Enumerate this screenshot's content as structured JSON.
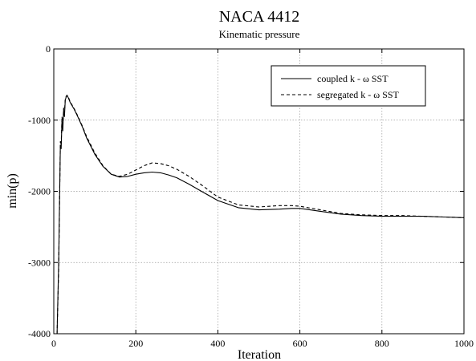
{
  "chart_data": {
    "type": "line",
    "title": "NACA 4412",
    "subtitle": "Kinematic pressure",
    "xlabel": "Iteration",
    "ylabel": "min(p)",
    "xlim": [
      0,
      1000
    ],
    "ylim": [
      -4000,
      0
    ],
    "xticks": [
      0,
      200,
      400,
      600,
      800,
      1000
    ],
    "yticks": [
      -4000,
      -3000,
      -2000,
      -1000,
      0
    ],
    "xtick_labels": [
      "0",
      "200",
      "400",
      "600",
      "800",
      "1000"
    ],
    "ytick_labels": [
      "-4000",
      "-3000",
      "-2000",
      "-1000",
      "0"
    ],
    "grid": true,
    "legend_position": "top-right",
    "series": [
      {
        "name": "coupled k - ω SST",
        "style": "solid",
        "color": "#000000",
        "x": [
          8,
          12,
          16,
          18,
          20,
          22,
          24,
          26,
          28,
          30,
          32,
          35,
          40,
          50,
          60,
          70,
          80,
          100,
          120,
          140,
          160,
          180,
          200,
          220,
          240,
          260,
          280,
          300,
          330,
          360,
          400,
          450,
          500,
          550,
          580,
          600,
          650,
          700,
          750,
          800,
          850,
          900,
          950,
          1000
        ],
        "y": [
          -4000,
          -3000,
          -1350,
          -1400,
          -1000,
          -1150,
          -850,
          -950,
          -720,
          -680,
          -650,
          -680,
          -750,
          -850,
          -970,
          -1100,
          -1250,
          -1480,
          -1650,
          -1760,
          -1800,
          -1790,
          -1760,
          -1740,
          -1730,
          -1740,
          -1770,
          -1810,
          -1900,
          -2000,
          -2130,
          -2230,
          -2260,
          -2250,
          -2240,
          -2240,
          -2280,
          -2320,
          -2340,
          -2350,
          -2350,
          -2350,
          -2360,
          -2370
        ]
      },
      {
        "name": "segregated k - ω SST",
        "style": "dashed",
        "color": "#000000",
        "x": [
          8,
          12,
          16,
          18,
          20,
          22,
          24,
          26,
          28,
          30,
          32,
          35,
          40,
          50,
          60,
          70,
          80,
          100,
          120,
          140,
          160,
          180,
          200,
          220,
          240,
          260,
          280,
          300,
          330,
          360,
          400,
          450,
          500,
          550,
          580,
          600,
          650,
          700,
          750,
          800,
          850,
          900,
          950,
          1000
        ],
        "y": [
          -4000,
          -3100,
          -1300,
          -1350,
          -950,
          -1100,
          -830,
          -900,
          -700,
          -670,
          -650,
          -670,
          -740,
          -840,
          -960,
          -1090,
          -1230,
          -1460,
          -1640,
          -1760,
          -1790,
          -1760,
          -1700,
          -1640,
          -1600,
          -1610,
          -1640,
          -1690,
          -1790,
          -1910,
          -2080,
          -2190,
          -2220,
          -2200,
          -2200,
          -2210,
          -2260,
          -2310,
          -2330,
          -2340,
          -2340,
          -2350,
          -2360,
          -2370
        ]
      }
    ]
  }
}
